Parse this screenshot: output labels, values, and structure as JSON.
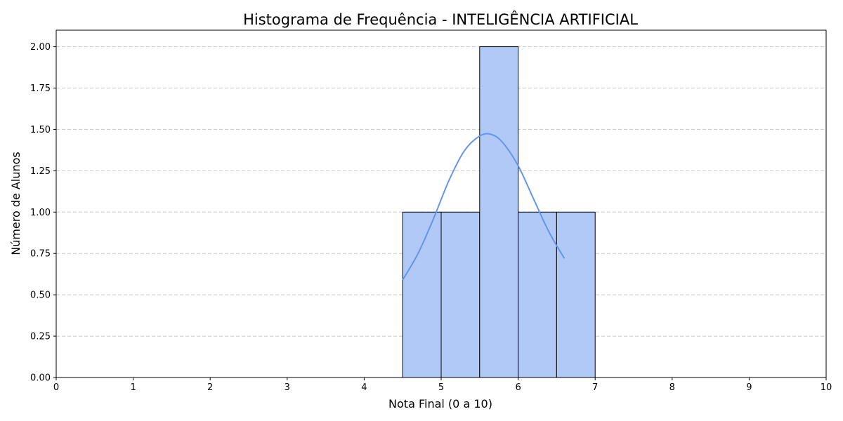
{
  "chart_data": {
    "type": "bar",
    "title": "Histograma de Frequência - INTELIGÊNCIA ARTIFICIAL",
    "xlabel": "Nota Final (0 a 10)",
    "ylabel": "Número de Alunos",
    "xlim": [
      0,
      10
    ],
    "ylim": [
      0,
      2.1
    ],
    "x_ticks": [
      "0",
      "1",
      "2",
      "3",
      "4",
      "5",
      "6",
      "7",
      "8",
      "9",
      "10"
    ],
    "y_ticks": [
      "0.00",
      "0.25",
      "0.50",
      "0.75",
      "1.00",
      "1.25",
      "1.50",
      "1.75",
      "2.00"
    ],
    "bins": [
      {
        "start": 4.5,
        "end": 5.0,
        "count": 1
      },
      {
        "start": 5.0,
        "end": 5.5,
        "count": 1
      },
      {
        "start": 5.5,
        "end": 6.0,
        "count": 2
      },
      {
        "start": 6.0,
        "end": 6.5,
        "count": 1
      },
      {
        "start": 6.5,
        "end": 7.0,
        "count": 1
      }
    ],
    "kde": {
      "x": [
        4.5,
        4.7,
        4.9,
        5.1,
        5.3,
        5.5,
        5.65,
        5.8,
        6.0,
        6.2,
        6.4,
        6.6
      ],
      "y": [
        0.59,
        0.75,
        0.96,
        1.19,
        1.37,
        1.46,
        1.47,
        1.42,
        1.28,
        1.08,
        0.88,
        0.72
      ]
    },
    "grid": "y-dashed",
    "colors": {
      "bar_fill": "#b0c9f6",
      "bar_edge": "#000000",
      "kde_line": "#6495ed",
      "grid": "#c8c8c8"
    }
  }
}
